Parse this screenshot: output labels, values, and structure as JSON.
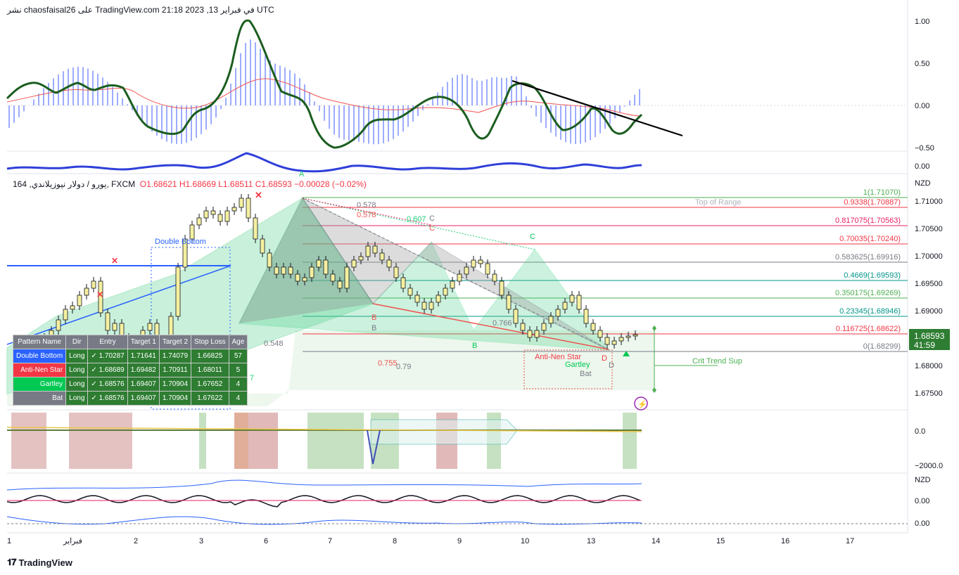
{
  "header": {
    "publisher": "نشر chaosfaisal26 على TradingView.com في فبراير 13, 2023 21:18 UTC"
  },
  "symbol": {
    "title": "يورو / دولار نيوزيلاندي, 164, FXCM",
    "open": "O1.68621",
    "high": "H1.68669",
    "low": "L1.68511",
    "close": "C1.68593",
    "change": "−0.00028 (−0.02%)"
  },
  "oscillator": {
    "ticks": [
      "1.00",
      "0.50",
      "0.00",
      "−0.50"
    ]
  },
  "sub_osc": {
    "ticks": [
      "0.00"
    ]
  },
  "price_axis": {
    "currency": "NZD",
    "ticks": [
      "1.71000",
      "1.70500",
      "1.70000",
      "1.69500",
      "1.69000",
      "1.68500",
      "1.68000",
      "1.67500"
    ],
    "last_price": "1.68593",
    "countdown": "41:59"
  },
  "fib_levels": [
    {
      "label": "1(1.71070)",
      "color": "#4caf50"
    },
    {
      "label": "0.9338(1.70887)",
      "color": "#f23645"
    },
    {
      "label": "0.817075(1.70563)",
      "color": "#e91e63"
    },
    {
      "label": "0.70035(1.70240)",
      "color": "#f23645"
    },
    {
      "label": "0.583625(1.69916)",
      "color": "#787b86"
    },
    {
      "label": "0.4669(1.69593)",
      "color": "#009688"
    },
    {
      "label": "0.350175(1.69269)",
      "color": "#4caf50"
    },
    {
      "label": "0.23345(1.68946)",
      "color": "#009688"
    },
    {
      "label": "0.116725(1.68622)",
      "color": "#f23645"
    },
    {
      "label": "0(1.68299)",
      "color": "#787b86"
    }
  ],
  "annotations": {
    "double_bottom": "Double Bottom",
    "top_of_range": "Top of Range",
    "crit_trend_sup": "Crit Trend Sup",
    "anti_nen_star": "Anti-Nen Star",
    "gartley": "Gartley",
    "bat": "Bat",
    "ratio_578a": "0.578",
    "ratio_578b": "0.578",
    "ratio_607": "0.607",
    "ratio_548": "0.548",
    "ratio_755": "0.755",
    "ratio_79": "0.79",
    "ratio_766": "0.766",
    "ratio_7": "7",
    "pt_a": "A",
    "pt_b1": "B",
    "pt_b2": "B",
    "pt_b3": "B",
    "pt_c1": "C",
    "pt_c2": "C",
    "pt_c3": "C",
    "pt_d1": "D",
    "pt_d2": "D"
  },
  "volume_axis": {
    "ticks": [
      "0.0",
      "−2000.0"
    ]
  },
  "lower_axis": {
    "currency": "NZD",
    "ticks": [
      "0.00",
      "0.00"
    ]
  },
  "time_axis": {
    "labels": [
      "1",
      "فبراير",
      "2",
      "3",
      "6",
      "7",
      "8",
      "9",
      "10",
      "13",
      "14",
      "15",
      "16",
      "17"
    ]
  },
  "pattern_table": {
    "headers": [
      "Pattern Name",
      "Dir",
      "Entry",
      "Target 1",
      "Target 2",
      "Stop Loss",
      "Age"
    ],
    "rows": [
      {
        "name": "Double Bottom",
        "dir": "Long",
        "entry": "✓ 1.70287",
        "t1": "1.71641",
        "t2": "1.74079",
        "sl": "1.66825",
        "age": "57",
        "color": "#2962ff"
      },
      {
        "name": "Anti-Nen Star",
        "dir": "Long",
        "entry": "✓ 1.68689",
        "t1": "1.69482",
        "t2": "1.70911",
        "sl": "1.68011",
        "age": "5",
        "color": "#f23645"
      },
      {
        "name": "Gartley",
        "dir": "Long",
        "entry": "✓ 1.68576",
        "t1": "1.69407",
        "t2": "1.70904",
        "sl": "1.67652",
        "age": "4",
        "color": "#00c853"
      },
      {
        "name": "Bat",
        "dir": "Long",
        "entry": "✓ 1.68576",
        "t1": "1.69407",
        "t2": "1.70904",
        "sl": "1.67622",
        "age": "4",
        "color": "#787b86"
      }
    ],
    "cell_bg": "#2e7d32"
  },
  "footer": {
    "brand": "TradingView"
  },
  "colors": {
    "osc_line": "#1b5e20",
    "signal_line": "#ef5350",
    "hist": "#8c9eff",
    "trend_line": "#000000",
    "wave": "#2f3fd9",
    "up_candle": "#f5f0a0",
    "down_candle": "#f5f0a0"
  }
}
